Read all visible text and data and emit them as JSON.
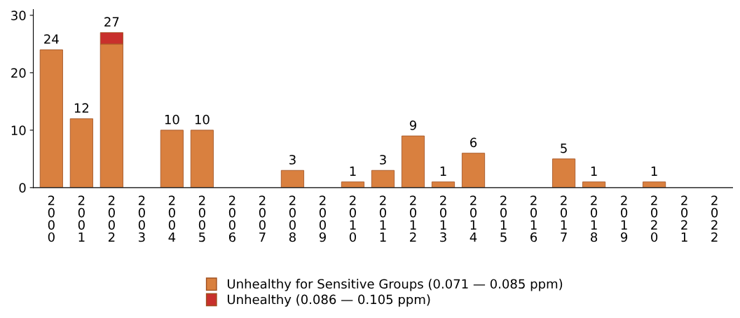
{
  "chart_data": {
    "type": "bar",
    "stacked": true,
    "categories": [
      "2000",
      "2001",
      "2002",
      "2003",
      "2004",
      "2005",
      "2006",
      "2007",
      "2008",
      "2009",
      "2010",
      "2011",
      "2012",
      "2013",
      "2014",
      "2015",
      "2016",
      "2017",
      "2018",
      "2019",
      "2020",
      "2021",
      "2022"
    ],
    "series": [
      {
        "name": "Unhealthy for Sensitive Groups (0.071 — 0.085 ppm)",
        "color": "#d9803f",
        "values": [
          24,
          12,
          25,
          0,
          10,
          10,
          0,
          0,
          3,
          0,
          1,
          3,
          9,
          1,
          6,
          0,
          0,
          5,
          1,
          0,
          1,
          0,
          0
        ]
      },
      {
        "name": "Unhealthy (0.086 — 0.105 ppm)",
        "color": "#c8302c",
        "values": [
          0,
          0,
          2,
          0,
          0,
          0,
          0,
          0,
          0,
          0,
          0,
          0,
          0,
          0,
          0,
          0,
          0,
          0,
          0,
          0,
          0,
          0,
          0
        ]
      }
    ],
    "totals": [
      "24",
      "12",
      "27",
      null,
      "10",
      "10",
      null,
      null,
      "3",
      null,
      "1",
      "3",
      "9",
      "1",
      "6",
      null,
      null,
      "5",
      "1",
      null,
      "1",
      null,
      null
    ],
    "ylim": [
      0,
      31
    ],
    "yticks": [
      0,
      10,
      20,
      30
    ],
    "grid": false,
    "legend": "bottom"
  }
}
